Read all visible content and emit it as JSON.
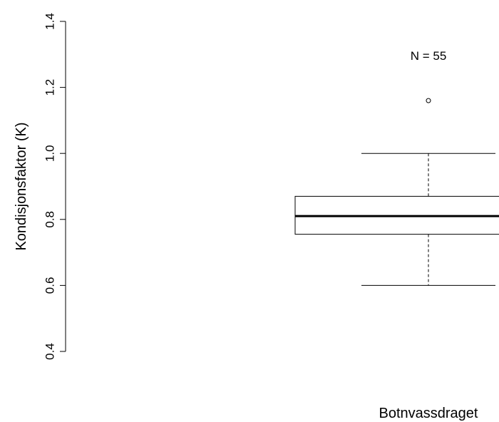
{
  "chart_data": {
    "type": "box",
    "ylabel": "Kondisjonsfaktor (K)",
    "ylim": [
      0.4,
      1.4
    ],
    "yticks": [
      "0.4",
      "0.6",
      "0.8",
      "1.0",
      "1.2",
      "1.4"
    ],
    "categories": [
      "Botnvassdraget"
    ],
    "boxes": [
      {
        "category": "Botnvassdraget",
        "whisker_low": 0.6,
        "q1": 0.755,
        "median": 0.81,
        "q3": 0.87,
        "whisker_high": 1.0,
        "outliers": [
          1.16
        ],
        "annotation": "N = 55"
      }
    ],
    "grid": false
  }
}
